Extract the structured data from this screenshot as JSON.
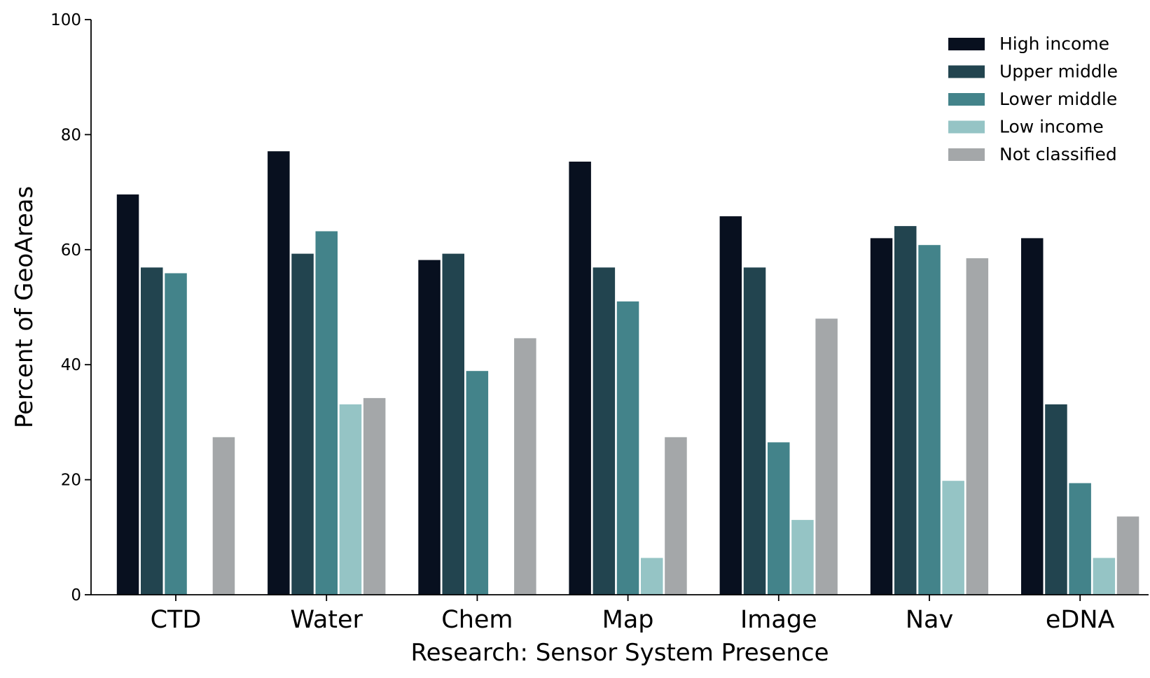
{
  "chart_data": {
    "type": "bar",
    "title": "",
    "xlabel": "Research: Sensor System Presence",
    "ylabel": "Percent of GeoAreas",
    "ylim": [
      0,
      100
    ],
    "yticks": [
      "0",
      "20",
      "40",
      "60",
      "80",
      "100"
    ],
    "categories": [
      "CTD",
      "Water",
      "Chem",
      "Map",
      "Image",
      "Nav",
      "eDNA"
    ],
    "series": [
      {
        "name": "High income",
        "color": "#08101f",
        "values": [
          69.6,
          77.1,
          58.2,
          75.3,
          65.8,
          62.0,
          62.0
        ]
      },
      {
        "name": "Upper middle",
        "color": "#22444f",
        "values": [
          56.9,
          59.3,
          59.3,
          56.9,
          56.9,
          64.1,
          33.1
        ]
      },
      {
        "name": "Lower middle",
        "color": "#43838a",
        "values": [
          55.9,
          63.2,
          38.9,
          51.0,
          26.5,
          60.8,
          19.4
        ]
      },
      {
        "name": "Low income",
        "color": "#95c4c5",
        "values": [
          0.0,
          33.1,
          0.0,
          6.4,
          13.0,
          19.8,
          6.4
        ]
      },
      {
        "name": "Not classified",
        "color": "#a4a7a9",
        "values": [
          27.4,
          34.2,
          44.6,
          27.4,
          48.0,
          58.5,
          13.6
        ]
      }
    ],
    "grid": false,
    "legend": "top-right"
  }
}
